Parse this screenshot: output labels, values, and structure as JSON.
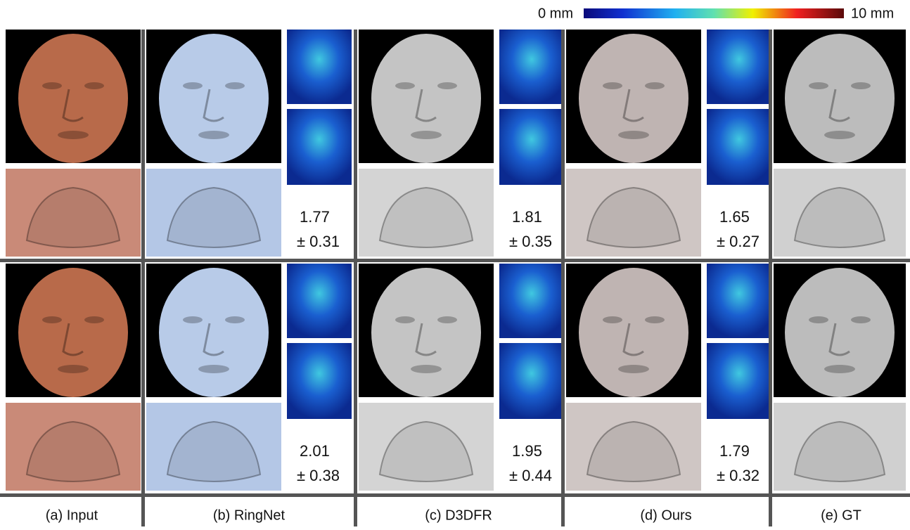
{
  "colorbar": {
    "min_label": "0 mm",
    "max_label": "10 mm"
  },
  "rows": [
    {
      "errors": [
        {
          "mean": "1.77",
          "std": "± 0.31"
        },
        {
          "mean": "1.81",
          "std": "± 0.35"
        },
        {
          "mean": "1.65",
          "std": "± 0.27"
        }
      ]
    },
    {
      "errors": [
        {
          "mean": "2.01",
          "std": "± 0.38"
        },
        {
          "mean": "1.95",
          "std": "± 0.44"
        },
        {
          "mean": "1.79",
          "std": "± 0.32"
        }
      ]
    }
  ],
  "columns": [
    "(a) Input",
    "(b) RingNet",
    "(c) D3DFR",
    "(d) Ours",
    "(e) GT"
  ]
}
